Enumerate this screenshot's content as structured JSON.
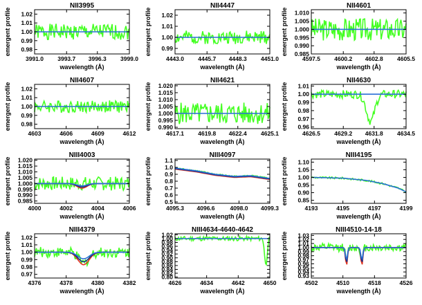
{
  "common": {
    "ylabel": "emergent profile",
    "xlabel": "wavelength (Å)"
  },
  "colors": {
    "observed": "#44ff22",
    "model_blue": "#2a6fd6",
    "model_red": "#e0321e",
    "model_dark": "#1a2e88",
    "axis": "#000000"
  },
  "chart_data": [
    {
      "type": "line",
      "title": "NII3995",
      "xticks": [
        "3991.0",
        "3993.7",
        "3996.3",
        "3999.0"
      ],
      "xlim": [
        3991.0,
        3999.0
      ],
      "yticks": [
        "0.98",
        "0.99",
        "1.00",
        "1.01",
        "1.02"
      ],
      "ylim": [
        0.975,
        1.025
      ],
      "series": [
        {
          "values": [
            [
              3991,
              1
            ],
            [
              3999,
              1
            ]
          ]
        }
      ],
      "noise": {
        "amp": 0.009,
        "seed": 1
      },
      "dip": null
    },
    {
      "type": "line",
      "title": "NII4447",
      "xticks": [
        "4443.0",
        "4445.7",
        "4448.3",
        "4451.0"
      ],
      "xlim": [
        4443.0,
        4451.0
      ],
      "yticks": [
        "0.99",
        "1.00",
        "1.01",
        "1.02"
      ],
      "ylim": [
        0.985,
        1.025
      ],
      "series": [
        {
          "values": [
            [
              4443,
              1
            ],
            [
              4451,
              1
            ]
          ]
        }
      ],
      "noise": {
        "amp": 0.006,
        "seed": 2
      },
      "dip": null
    },
    {
      "type": "line",
      "title": "NII4601",
      "xticks": [
        "4597.5",
        "4600.2",
        "4602.8",
        "4605.5"
      ],
      "xlim": [
        4597.5,
        4605.5
      ],
      "yticks": [
        "0.985",
        "0.990",
        "0.995",
        "1.000",
        "1.005",
        "1.010"
      ],
      "ylim": [
        0.985,
        1.012
      ],
      "series": [
        {
          "values": [
            [
              4597.5,
              1
            ],
            [
              4605.5,
              1
            ]
          ]
        }
      ],
      "noise": {
        "amp": 0.007,
        "seed": 3
      },
      "dip": null
    },
    {
      "type": "line",
      "title": "NII4607",
      "xticks": [
        "4603",
        "4606",
        "4609",
        "4612"
      ],
      "xlim": [
        4603,
        4612
      ],
      "yticks": [
        "0.98",
        "0.99",
        "1.00",
        "1.01",
        "1.02"
      ],
      "ylim": [
        0.975,
        1.025
      ],
      "series": [
        {
          "values": [
            [
              4603,
              1
            ],
            [
              4612,
              1
            ]
          ]
        }
      ],
      "noise": {
        "amp": 0.007,
        "seed": 4
      },
      "dip": null
    },
    {
      "type": "line",
      "title": "NII4621",
      "xticks": [
        "4617.1",
        "4619.8",
        "4622.4",
        "4625.1"
      ],
      "xlim": [
        4617.1,
        4625.1
      ],
      "yticks": [
        "0.990",
        "0.995",
        "1.000",
        "1.005",
        "1.010",
        "1.015",
        "1.020"
      ],
      "ylim": [
        0.989,
        1.021
      ],
      "series": [
        {
          "values": [
            [
              4617.1,
              1
            ],
            [
              4625.1,
              1
            ]
          ]
        }
      ],
      "noise": {
        "amp": 0.008,
        "seed": 5
      },
      "dip": null
    },
    {
      "type": "line",
      "title": "NII4630",
      "xticks": [
        "4626.5",
        "4629.2",
        "4631.8",
        "4634.5"
      ],
      "xlim": [
        4626.5,
        4634.5
      ],
      "yticks": [
        "0.96",
        "0.97",
        "0.98",
        "0.99",
        "1.00",
        "1.01"
      ],
      "ylim": [
        0.958,
        1.012
      ],
      "series": [
        {
          "values": [
            [
              4626.5,
              1
            ],
            [
              4634.5,
              1
            ]
          ]
        }
      ],
      "noise": {
        "amp": 0.005,
        "seed": 6
      },
      "dip": {
        "center": 4631.5,
        "depth": 0.033,
        "width": 1.0
      }
    },
    {
      "type": "line",
      "title": "NIII4003",
      "xticks": [
        "4000",
        "4002",
        "4004",
        "4006"
      ],
      "xlim": [
        4000,
        4006
      ],
      "yticks": [
        "0.985",
        "0.990",
        "0.995",
        "1.000",
        "1.005",
        "1.010",
        "1.015",
        "1.020"
      ],
      "ylim": [
        0.983,
        1.021
      ],
      "series": [
        {
          "values": [
            [
              4000,
              1
            ],
            [
              4006,
              1
            ]
          ]
        }
      ],
      "noise": {
        "amp": 0.006,
        "seed": 7
      },
      "models": [
        {
          "center": 4003,
          "depth": 0.004,
          "width": 0.9,
          "color": "model_red"
        },
        {
          "center": 4003,
          "depth": 0.003,
          "width": 0.9,
          "color": "model_dark"
        },
        {
          "center": 4003,
          "depth": 0.002,
          "width": 0.9,
          "color": "model_blue"
        }
      ],
      "dip": null
    },
    {
      "type": "line",
      "title": "NIII4097",
      "xticks": [
        "4095.3",
        "4096.6",
        "4098.0",
        "4099.3"
      ],
      "xlim": [
        4095.3,
        4099.3
      ],
      "yticks": [
        "0.5",
        "0.6",
        "0.7",
        "0.8",
        "0.9",
        "1.0",
        "1.1"
      ],
      "ylim": [
        0.48,
        1.12
      ],
      "series": [
        {
          "values": [
            [
              4095.3,
              0.99
            ],
            [
              4096.2,
              0.95
            ],
            [
              4097.0,
              0.9
            ],
            [
              4097.8,
              0.87
            ],
            [
              4098.5,
              0.88
            ],
            [
              4099.3,
              0.84
            ]
          ]
        }
      ],
      "noise": {
        "amp": 0.01,
        "seed": 8
      },
      "models": [
        {
          "offset": -0.015,
          "color": "model_red"
        },
        {
          "offset": -0.008,
          "color": "model_dark"
        },
        {
          "offset": 0,
          "color": "model_blue"
        }
      ],
      "dip": null
    },
    {
      "type": "line",
      "title": "NIII4195",
      "xticks": [
        "4193",
        "4195",
        "4197",
        "4199"
      ],
      "xlim": [
        4193,
        4199
      ],
      "yticks": [
        "0.85",
        "0.90",
        "0.95",
        "1.00",
        "1.05",
        "1.10"
      ],
      "ylim": [
        0.83,
        1.12
      ],
      "series": [
        {
          "values": [
            [
              4193,
              1.0
            ],
            [
              4195,
              0.995
            ],
            [
              4196.5,
              0.98
            ],
            [
              4197.5,
              0.96
            ],
            [
              4198.5,
              0.93
            ],
            [
              4199,
              0.905
            ]
          ]
        }
      ],
      "noise": {
        "amp": 0.006,
        "seed": 9
      },
      "dip": null
    },
    {
      "type": "line",
      "title": "NIII4379",
      "xticks": [
        "4376",
        "4378",
        "4380",
        "4382"
      ],
      "xlim": [
        4376,
        4382
      ],
      "yticks": [
        "0.97",
        "0.98",
        "0.99",
        "1.00",
        "1.01",
        "1.02"
      ],
      "ylim": [
        0.965,
        1.025
      ],
      "series": [
        {
          "values": [
            [
              4376,
              1
            ],
            [
              4382,
              1
            ]
          ]
        }
      ],
      "noise": {
        "amp": 0.007,
        "seed": 10
      },
      "models": [
        {
          "center": 4379.1,
          "depth": 0.017,
          "width": 1.0,
          "color": "model_red"
        },
        {
          "center": 4379.1,
          "depth": 0.013,
          "width": 1.0,
          "color": "model_dark"
        },
        {
          "center": 4379.1,
          "depth": 0.009,
          "width": 1.0,
          "color": "model_blue"
        }
      ],
      "dip": {
        "center": 4379.1,
        "depth": 0.015,
        "width": 0.9
      }
    },
    {
      "type": "line",
      "title": "NIII4634-4640-4642",
      "xticks": [
        "4626",
        "4634",
        "4642",
        "4650"
      ],
      "xlim": [
        4626,
        4650
      ],
      "yticks": [
        "0.80",
        "0.82",
        "0.84",
        "0.86",
        "0.88",
        "0.90",
        "0.92",
        "0.94",
        "0.96",
        "0.98",
        "1.00",
        "1.02"
      ],
      "ylim": [
        0.795,
        1.025
      ],
      "series": [
        {
          "values": [
            [
              4626,
              1
            ],
            [
              4650,
              1
            ]
          ]
        }
      ],
      "noise": {
        "amp": 0.012,
        "seed": 11
      },
      "dip": {
        "center": 4649,
        "depth": 0.14,
        "width": 0.9
      }
    },
    {
      "type": "line",
      "title": "NIII4510-14-18",
      "xticks": [
        "4502",
        "4510",
        "4518",
        "4526"
      ],
      "xlim": [
        4502,
        4526
      ],
      "yticks": [
        "0.93",
        "0.94",
        "0.95",
        "0.96",
        "0.97",
        "0.98",
        "0.99",
        "1.00",
        "1.01",
        "1.02",
        "1.03"
      ],
      "ylim": [
        0.925,
        1.034
      ],
      "series": [
        {
          "values": [
            [
              4502,
              1
            ],
            [
              4526,
              1
            ]
          ]
        }
      ],
      "noise": {
        "amp": 0.01,
        "seed": 12
      },
      "models": [
        {
          "centers": [
            4510.9,
            4514.8
          ],
          "depth": 0.045,
          "width": 0.7,
          "color": "model_red"
        },
        {
          "centers": [
            4510.9,
            4514.8
          ],
          "depth": 0.038,
          "width": 0.7,
          "color": "model_dark"
        },
        {
          "centers": [
            4510.9,
            4514.8
          ],
          "depth": 0.03,
          "width": 0.7,
          "color": "model_blue"
        }
      ],
      "dip": {
        "centers": [
          4510.9,
          4514.8
        ],
        "depth": 0.04,
        "width": 0.7
      }
    }
  ]
}
